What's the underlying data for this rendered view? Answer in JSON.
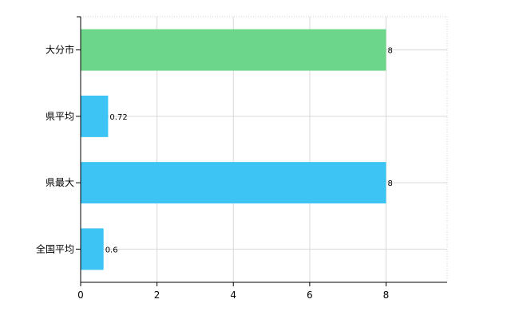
{
  "chart_data": {
    "type": "bar",
    "orientation": "horizontal",
    "categories": [
      "大分市",
      "県平均",
      "県最大",
      "全国平均"
    ],
    "values": [
      8,
      0.72,
      8,
      0.6
    ],
    "value_labels": [
      "8",
      "0.72",
      "8",
      "0.6"
    ],
    "bar_colors": [
      "#6cd68a",
      "#3dc4f4",
      "#3dc4f4",
      "#3dc4f4"
    ],
    "xlim": [
      0,
      9.6
    ],
    "xticks": [
      0,
      2,
      4,
      6,
      8
    ],
    "xtick_labels": [
      "0",
      "2",
      "4",
      "6",
      "8"
    ],
    "grid": true,
    "legend": "none",
    "title": "",
    "xlabel": "",
    "ylabel": ""
  }
}
